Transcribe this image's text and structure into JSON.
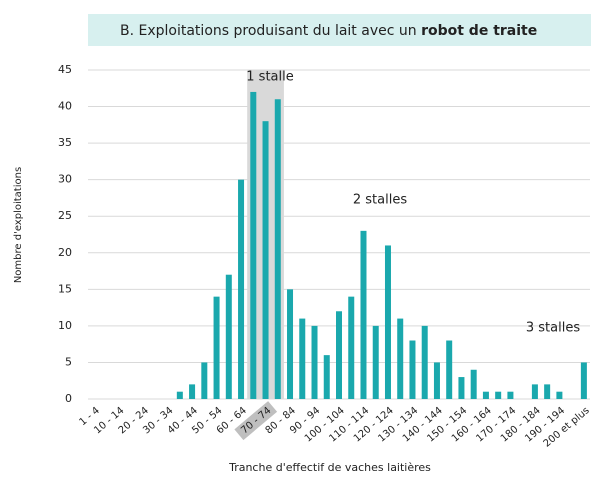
{
  "chart_data": {
    "type": "bar",
    "title": {
      "text": "B. Exploitations produisant du lait avec un",
      "bold": "robot de traite"
    },
    "y_label": "Nombre d'exploitations",
    "x_label": "Tranche d'effectif de vaches laitières",
    "categories": [
      "1 - 4",
      null,
      "10 - 14",
      null,
      "20 - 24",
      null,
      "30 - 34",
      null,
      "40 - 44",
      null,
      "50 - 54",
      null,
      "60 - 64",
      null,
      "70 - 74",
      null,
      "80 - 84",
      null,
      "90 - 94",
      null,
      "100 - 104",
      null,
      "110 - 114",
      null,
      "120 - 124",
      null,
      "130 - 134",
      null,
      "140 - 144",
      null,
      "150 - 154",
      null,
      "160 - 164",
      null,
      "170 - 174",
      null,
      "180 - 184",
      null,
      "190 - 194",
      null,
      "200 et plus"
    ],
    "values": [
      0,
      0,
      0,
      0,
      0,
      0,
      0,
      1,
      2,
      5,
      14,
      17,
      30,
      42,
      38,
      41,
      15,
      11,
      10,
      6,
      12,
      14,
      23,
      10,
      21,
      11,
      8,
      10,
      5,
      8,
      3,
      4,
      1,
      1,
      1,
      0,
      2,
      2,
      1,
      0,
      5
    ],
    "color": "#1aa8ad",
    "ylim": [
      0,
      45
    ],
    "yticks": [
      0,
      5,
      10,
      15,
      20,
      25,
      30,
      35,
      40,
      45
    ],
    "grid": true,
    "annotations": [
      "1 stalle",
      "2 stalles",
      "3 stalles"
    ]
  }
}
